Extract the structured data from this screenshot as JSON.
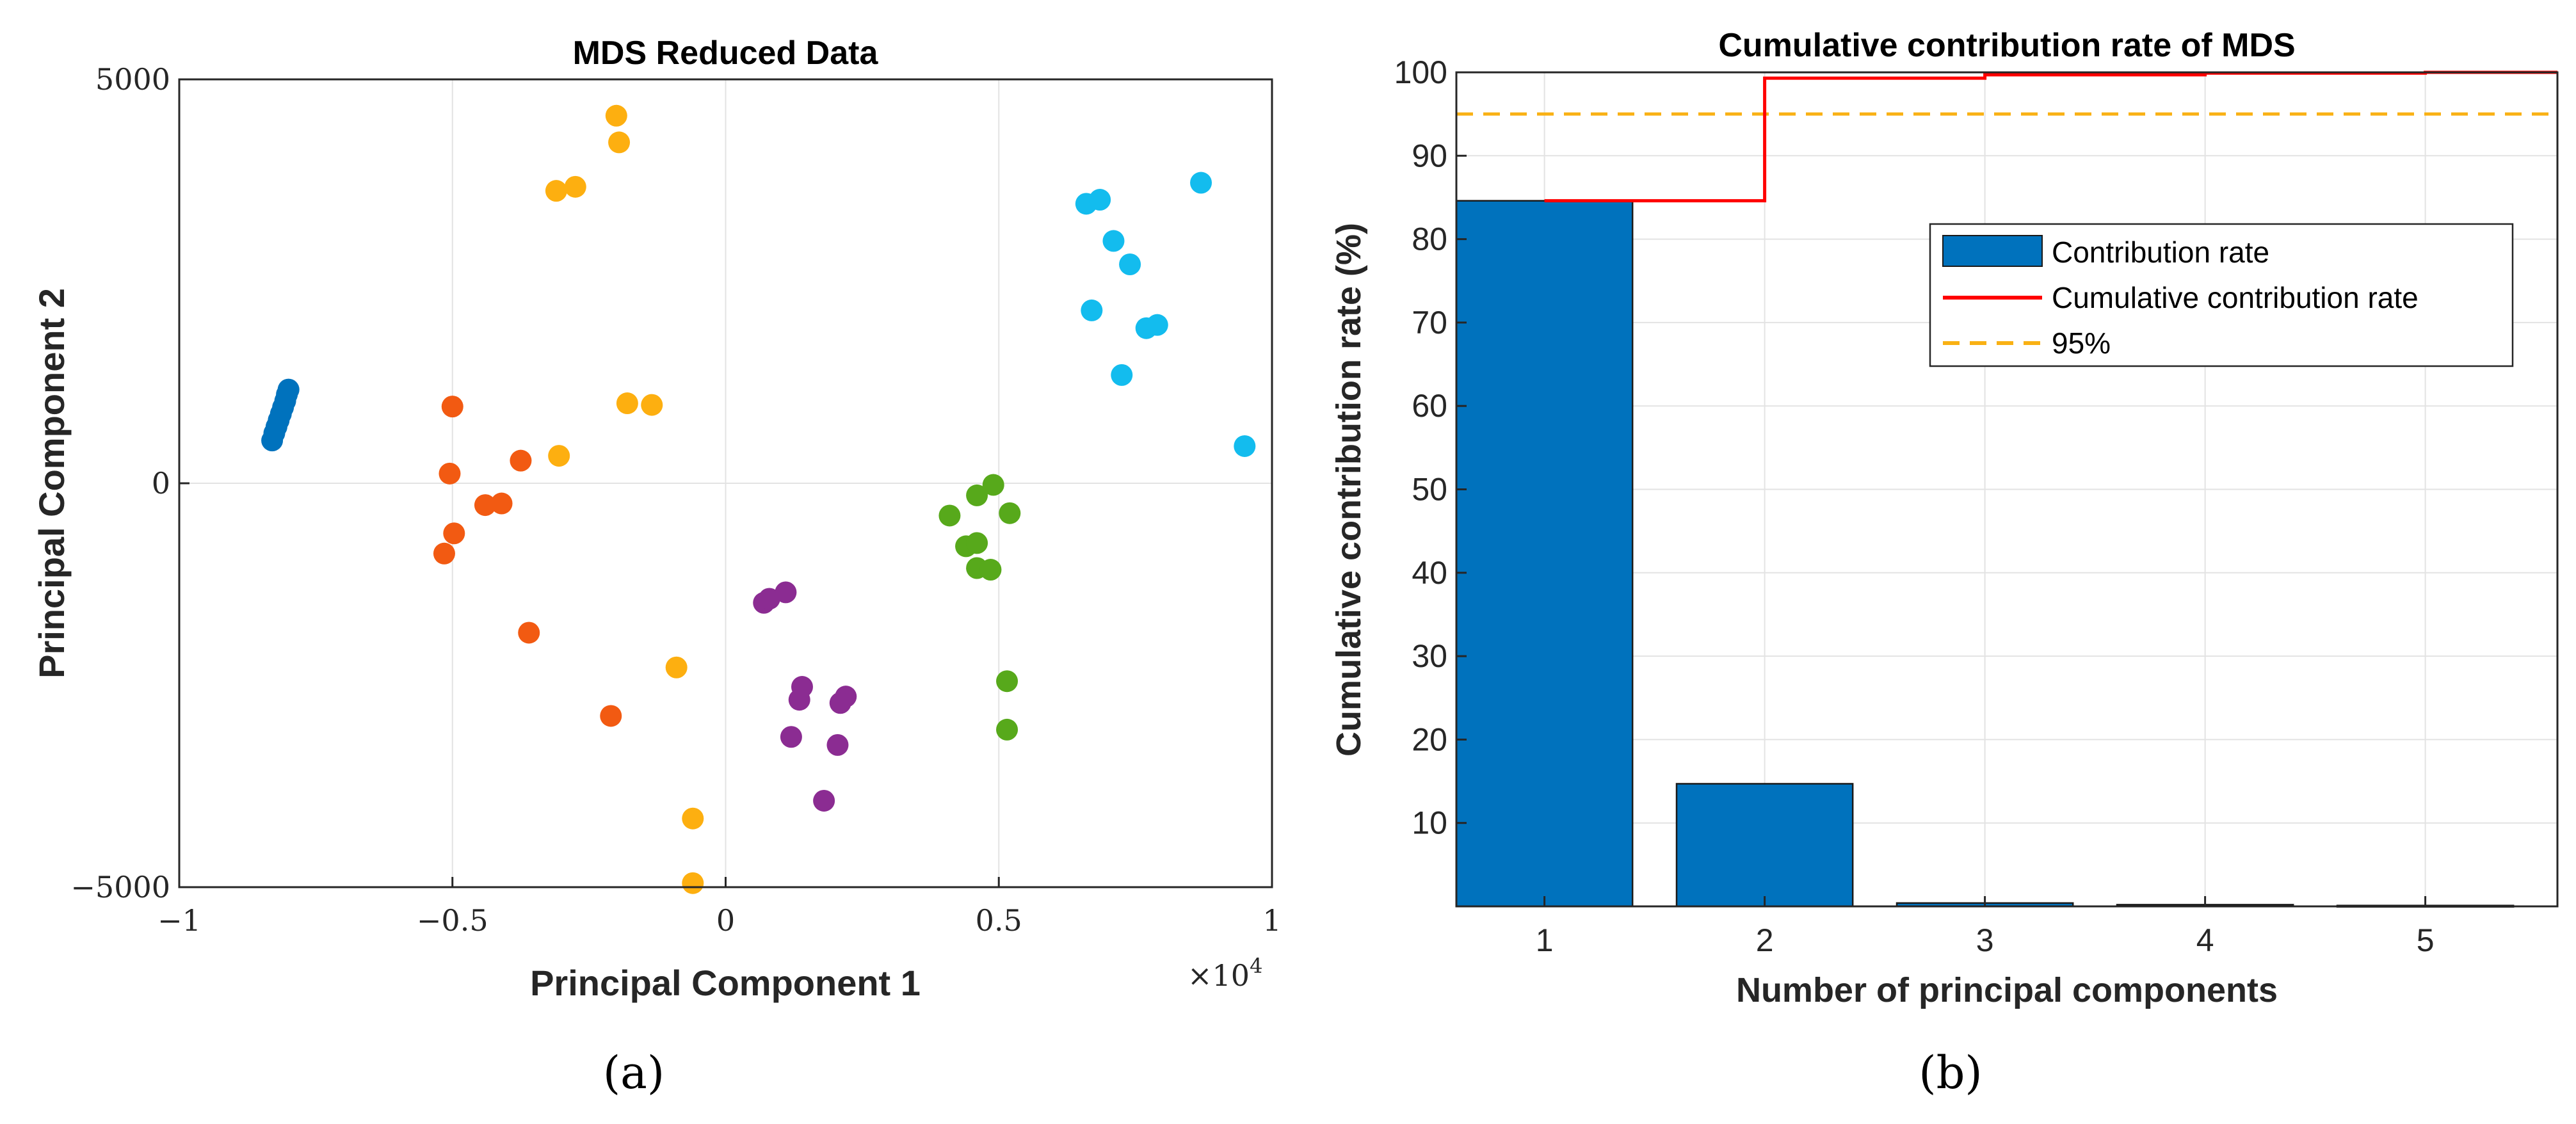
{
  "chart_data": [
    {
      "type": "scatter",
      "title": "MDS Reduced Data",
      "xlabel": "Principal Component 1",
      "ylabel": "Principal Component 2",
      "x_multiplier_label": "×10",
      "x_multiplier_exp": "4",
      "xlim": [
        -10000,
        10000
      ],
      "ylim": [
        -5000,
        5000
      ],
      "xticks": [
        -10000,
        -5000,
        0,
        5000,
        10000
      ],
      "xtick_labels": [
        "−1",
        "−0.5",
        "0",
        "0.5",
        "1"
      ],
      "yticks": [
        -5000,
        0,
        5000
      ],
      "ytick_labels": [
        "−5000",
        "0",
        "5000"
      ],
      "grid": true,
      "panel_label": "(a)",
      "series": [
        {
          "color": "#0072BD",
          "points": [
            [
              -8300,
              530
            ],
            [
              -8260,
              620
            ],
            [
              -8220,
              700
            ],
            [
              -8180,
              780
            ],
            [
              -8140,
              860
            ],
            [
              -8100,
              940
            ],
            [
              -8060,
              1020
            ],
            [
              -8030,
              1100
            ],
            [
              -8000,
              1160
            ]
          ]
        },
        {
          "color": "#F25A12",
          "points": [
            [
              -5000,
              950
            ],
            [
              -5050,
              120
            ],
            [
              -4970,
              -620
            ],
            [
              -5150,
              -870
            ],
            [
              -4400,
              -270
            ],
            [
              -4100,
              -250
            ],
            [
              -3750,
              280
            ],
            [
              -3600,
              -1850
            ],
            [
              -2100,
              -2880
            ]
          ]
        },
        {
          "color": "#FDAF10",
          "points": [
            [
              -2000,
              4550
            ],
            [
              -1950,
              4220
            ],
            [
              -3100,
              3620
            ],
            [
              -2750,
              3670
            ],
            [
              -3050,
              340
            ],
            [
              -1800,
              990
            ],
            [
              -1350,
              970
            ],
            [
              -900,
              -2280
            ],
            [
              -600,
              -4150
            ],
            [
              -600,
              -4950
            ]
          ]
        },
        {
          "color": "#8B2C92",
          "points": [
            [
              700,
              -1480
            ],
            [
              800,
              -1430
            ],
            [
              1100,
              -1350
            ],
            [
              1400,
              -2520
            ],
            [
              1350,
              -2680
            ],
            [
              1200,
              -3140
            ],
            [
              2200,
              -2640
            ],
            [
              2100,
              -2720
            ],
            [
              2050,
              -3240
            ],
            [
              1800,
              -3930
            ]
          ]
        },
        {
          "color": "#57A91B",
          "points": [
            [
              4100,
              -400
            ],
            [
              4600,
              -150
            ],
            [
              4900,
              -20
            ],
            [
              5200,
              -370
            ],
            [
              4400,
              -780
            ],
            [
              4600,
              -740
            ],
            [
              4600,
              -1050
            ],
            [
              4850,
              -1070
            ],
            [
              5150,
              -2450
            ],
            [
              5150,
              -3050
            ]
          ]
        },
        {
          "color": "#13BCEE",
          "points": [
            [
              6600,
              3460
            ],
            [
              6850,
              3510
            ],
            [
              8700,
              3720
            ],
            [
              7100,
              3000
            ],
            [
              7400,
              2710
            ],
            [
              6700,
              2140
            ],
            [
              7700,
              1920
            ],
            [
              7900,
              1960
            ],
            [
              7250,
              1340
            ],
            [
              9500,
              460
            ]
          ]
        }
      ]
    },
    {
      "type": "bar",
      "title": "Cumulative contribution rate of MDS",
      "xlabel": "Number of principal components",
      "ylabel": "Cumulative contribution rate (%)",
      "categories": [
        "1",
        "2",
        "3",
        "4",
        "5"
      ],
      "xlim": [
        0.6,
        5.6
      ],
      "ylim": [
        0,
        100
      ],
      "yticks": [
        10,
        20,
        30,
        40,
        50,
        60,
        70,
        80,
        90,
        100
      ],
      "grid": true,
      "legend_position": "top-right",
      "panel_label": "(b)",
      "series": [
        {
          "name": "Contribution rate",
          "type": "bar",
          "color": "#0072BD",
          "values": [
            84.6,
            14.7,
            0.4,
            0.2,
            0.1
          ]
        },
        {
          "name": "Cumulative contribution rate",
          "type": "stairs",
          "color": "#FF0000",
          "values": [
            84.6,
            99.3,
            99.7,
            99.9,
            100.0
          ]
        },
        {
          "name": "95%",
          "type": "hline",
          "color": "#F9B114",
          "dash": true,
          "value": 95
        }
      ]
    }
  ]
}
